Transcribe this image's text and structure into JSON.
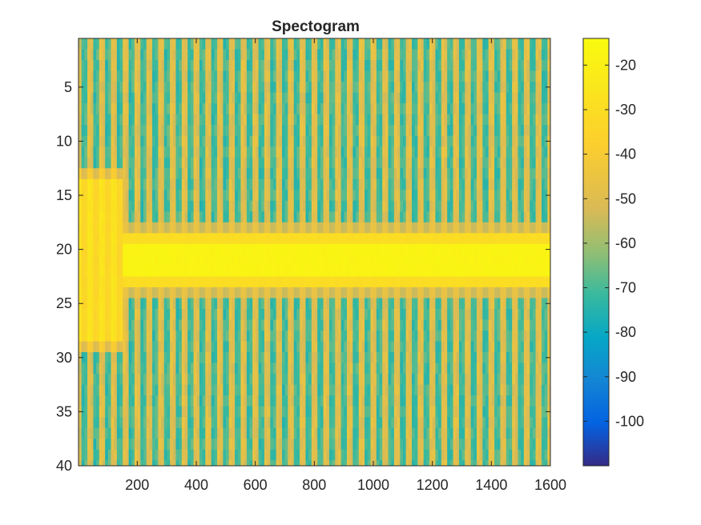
{
  "chart_data": {
    "type": "heatmap",
    "title": "Spectogram",
    "xlabel": "",
    "ylabel": "",
    "xlim": [
      1,
      1600
    ],
    "ylim": [
      40,
      0.5
    ],
    "y_reversed": true,
    "x_ticks": [
      200,
      400,
      600,
      800,
      1000,
      1200,
      1400,
      1600
    ],
    "y_ticks": [
      5,
      10,
      15,
      20,
      25,
      30,
      35,
      40
    ],
    "colorbar": {
      "colormap": "parula",
      "clim": [
        -110,
        -14
      ],
      "ticks": [
        -20,
        -30,
        -40,
        -50,
        -60,
        -70,
        -80,
        -90,
        -100
      ]
    },
    "features": {
      "background_dB_range": [
        -75,
        -45
      ],
      "column_period_x": 40,
      "early_segment": {
        "x_range": [
          1,
          155
        ],
        "rows": [
          14,
          28
        ],
        "level_dB": -30
      },
      "tone_band": {
        "rows": [
          19,
          23
        ],
        "x_range": [
          155,
          1600
        ],
        "center_dB": -18,
        "edge_dB": -30
      }
    },
    "grid": false,
    "box": true
  }
}
